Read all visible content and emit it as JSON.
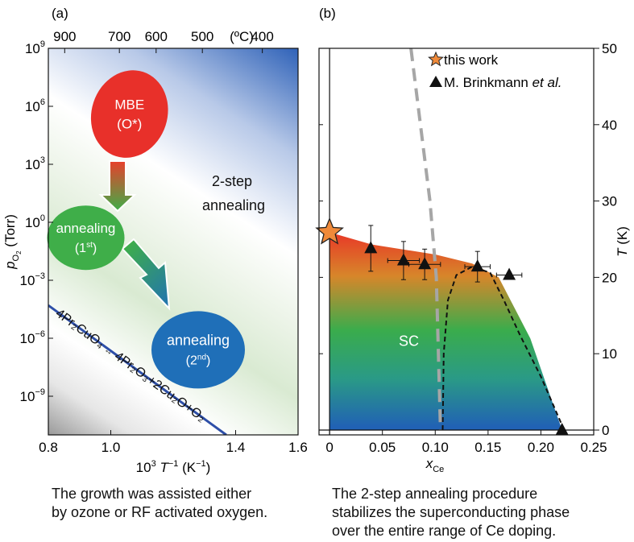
{
  "chart_data": [
    {
      "type": "diagram-plot",
      "panel_label": "(a)",
      "xlabel": {
        "pre": "10",
        "sup": "3",
        "var": "T",
        "sup2": "−1",
        "unit": " (K",
        "unit_sup": "−1",
        "post": ")"
      },
      "ylabel": {
        "var": "p",
        "sub": "O",
        "sub2": "2",
        "unit": " (Torr)"
      },
      "xlim": [
        0.8,
        1.6
      ],
      "x_ticks": [
        {
          "value": 0.8,
          "label": "0.8"
        },
        {
          "value": 1.0,
          "label": "1.0"
        },
        {
          "value": 1.4,
          "label": "1.4"
        },
        {
          "value": 1.6,
          "label": "1.6"
        }
      ],
      "ylim_log10": [
        -11,
        9
      ],
      "y_ticks": [
        {
          "exp": 9,
          "base": "10",
          "sup": "9"
        },
        {
          "exp": 6,
          "base": "10",
          "sup": "6"
        },
        {
          "exp": 3,
          "base": "10",
          "sup": "3"
        },
        {
          "exp": 0,
          "base": "10",
          "sup": "0"
        },
        {
          "exp": -3,
          "base": "10",
          "sup": "−3"
        },
        {
          "exp": -6,
          "base": "10",
          "sup": "−6"
        },
        {
          "exp": -9,
          "base": "10",
          "sup": "−9"
        }
      ],
      "top_axis": {
        "unit_label": "(ºC)",
        "ticks": [
          {
            "celsius": 900,
            "label": "900"
          },
          {
            "celsius": 700,
            "label": "700"
          },
          {
            "celsius": 600,
            "label": "600"
          },
          {
            "celsius": 500,
            "label": "500"
          },
          {
            "celsius": 400,
            "label": "400"
          }
        ]
      },
      "region_labels": {
        "two_step": [
          "2-step",
          "annealing"
        ]
      },
      "boundary_line": {
        "points": [
          [
            0.8,
            -4.3
          ],
          [
            1.37,
            -11
          ]
        ],
        "label_left": "4Pr₂CuO₄",
        "label_arrow": "↔",
        "label_right": "4Pr₂O₃+2Cu₂O+O₂",
        "color": "#2e4fa8"
      },
      "blobs": [
        {
          "name": "mbe",
          "x": 1.06,
          "log_p": 5.6,
          "lines": [
            "MBE",
            "(O*)"
          ],
          "color": "#e8302a"
        },
        {
          "name": "anneal1",
          "x": 0.92,
          "log_p": -0.8,
          "text": "annealing",
          "sub_pre": "(1",
          "sub_sup": "st",
          "sub_post": ")",
          "color": "#3fae49"
        },
        {
          "name": "anneal2",
          "x": 1.28,
          "log_p": -6.6,
          "text": "annealing",
          "sub_pre": "(2",
          "sub_sup": "nd",
          "sub_post": ")",
          "color": "#1f6fb8"
        }
      ]
    },
    {
      "type": "scatter",
      "panel_label": "(b)",
      "xlabel": {
        "var": "x",
        "sub": "Ce"
      },
      "ylabel": {
        "var": "T",
        "unit": " (K)"
      },
      "xlim": [
        -0.01,
        0.25
      ],
      "ylim": [
        0,
        50
      ],
      "x_ticks": [
        {
          "value": 0,
          "label": "0"
        },
        {
          "value": 0.05,
          "label": "0.05"
        },
        {
          "value": 0.1,
          "label": "0.10"
        },
        {
          "value": 0.15,
          "label": "0.15"
        },
        {
          "value": 0.2,
          "label": "0.20"
        },
        {
          "value": 0.25,
          "label": "0.25"
        }
      ],
      "y_ticks": [
        {
          "value": 0,
          "label": "0"
        },
        {
          "value": 10,
          "label": "10"
        },
        {
          "value": 20,
          "label": "20"
        },
        {
          "value": 30,
          "label": "30"
        },
        {
          "value": 40,
          "label": "40"
        },
        {
          "value": 50,
          "label": "50"
        }
      ],
      "region_label": "SC",
      "legend": {
        "position": "top-right",
        "entries": [
          {
            "marker": "star",
            "label": "this work"
          },
          {
            "marker": "triangle",
            "label_pre": "M. Brinkmann ",
            "label_italic": "et al."
          }
        ]
      },
      "series": [
        {
          "marker": "star",
          "points": [
            {
              "x": 0.0,
              "y": 25.9
            }
          ],
          "color": "#f08a3a"
        },
        {
          "marker": "triangle",
          "points": [
            {
              "x": 0.039,
              "y": 23.8,
              "yerr": 3.0,
              "xerr": 0.0
            },
            {
              "x": 0.07,
              "y": 22.2,
              "yerr": 2.5,
              "xerr": 0.015
            },
            {
              "x": 0.09,
              "y": 21.7,
              "yerr": 2.0,
              "xerr": 0.015
            },
            {
              "x": 0.14,
              "y": 21.4,
              "yerr": 2.0,
              "xerr": 0.012
            },
            {
              "x": 0.17,
              "y": 20.3,
              "yerr": 0.0,
              "xerr": 0.012
            },
            {
              "x": 0.22,
              "y": 0.0,
              "yerr": 0.0,
              "xerr": 0.0
            }
          ],
          "color": "#111111"
        }
      ],
      "sc_dome_upper": [
        [
          0.0,
          25.9
        ],
        [
          0.04,
          24.3
        ],
        [
          0.1,
          23.0
        ],
        [
          0.135,
          21.8
        ],
        [
          0.16,
          20.0
        ],
        [
          0.19,
          12.0
        ],
        [
          0.22,
          0.0
        ]
      ],
      "dashed_boundary": [
        [
          0.107,
          0.0
        ],
        [
          0.108,
          10.0
        ],
        [
          0.112,
          17.0
        ],
        [
          0.12,
          20.3
        ],
        [
          0.135,
          21.4
        ],
        [
          0.152,
          20.6
        ],
        [
          0.165,
          17.0
        ],
        [
          0.18,
          12.5
        ],
        [
          0.2,
          7.0
        ],
        [
          0.222,
          0.0
        ]
      ],
      "gray_dashed": [
        [
          0.077,
          50.0
        ],
        [
          0.086,
          40.0
        ],
        [
          0.095,
          30.0
        ],
        [
          0.101,
          20.0
        ],
        [
          0.105,
          0.0
        ]
      ]
    }
  ],
  "captions": {
    "left": [
      "The growth was assisted either",
      "by ozone or RF activated oxygen."
    ],
    "right": [
      "The 2-step annealing procedure",
      "stabilizes the superconducting phase",
      "over the entire range of Ce doping."
    ]
  }
}
